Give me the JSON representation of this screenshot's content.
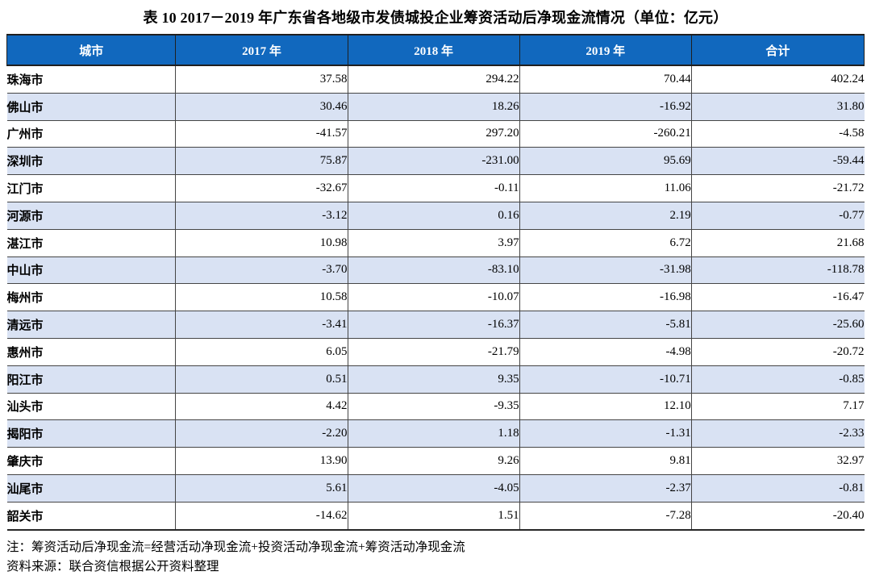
{
  "table": {
    "title": "表 10  2017－2019 年广东省各地级市发债城投企业筹资活动后净现金流情况（单位：亿元）",
    "unit": "亿元",
    "columns": [
      "城市",
      "2017 年",
      "2018 年",
      "2019 年",
      "合计"
    ],
    "rows": [
      [
        "珠海市",
        "37.58",
        "294.22",
        "70.44",
        "402.24"
      ],
      [
        "佛山市",
        "30.46",
        "18.26",
        "-16.92",
        "31.80"
      ],
      [
        "广州市",
        "-41.57",
        "297.20",
        "-260.21",
        "-4.58"
      ],
      [
        "深圳市",
        "75.87",
        "-231.00",
        "95.69",
        "-59.44"
      ],
      [
        "江门市",
        "-32.67",
        "-0.11",
        "11.06",
        "-21.72"
      ],
      [
        "河源市",
        "-3.12",
        "0.16",
        "2.19",
        "-0.77"
      ],
      [
        "湛江市",
        "10.98",
        "3.97",
        "6.72",
        "21.68"
      ],
      [
        "中山市",
        "-3.70",
        "-83.10",
        "-31.98",
        "-118.78"
      ],
      [
        "梅州市",
        "10.58",
        "-10.07",
        "-16.98",
        "-16.47"
      ],
      [
        "清远市",
        "-3.41",
        "-16.37",
        "-5.81",
        "-25.60"
      ],
      [
        "惠州市",
        "6.05",
        "-21.79",
        "-4.98",
        "-20.72"
      ],
      [
        "阳江市",
        "0.51",
        "9.35",
        "-10.71",
        "-0.85"
      ],
      [
        "汕头市",
        "4.42",
        "-9.35",
        "12.10",
        "7.17"
      ],
      [
        "揭阳市",
        "-2.20",
        "1.18",
        "-1.31",
        "-2.33"
      ],
      [
        "肇庆市",
        "13.90",
        "9.26",
        "9.81",
        "32.97"
      ],
      [
        "汕尾市",
        "5.61",
        "-4.05",
        "-2.37",
        "-0.81"
      ],
      [
        "韶关市",
        "-14.62",
        "1.51",
        "-7.28",
        "-20.40"
      ]
    ],
    "note": "注：筹资活动后净现金流=经营活动净现金流+投资活动净现金流+筹资活动净现金流",
    "source": "资料来源：联合资信根据公开资料整理"
  },
  "colors": {
    "header_bg": "#1168be",
    "header_text": "#ffffff",
    "alt_row_bg": "#d9e2f3",
    "border": "#454545"
  }
}
